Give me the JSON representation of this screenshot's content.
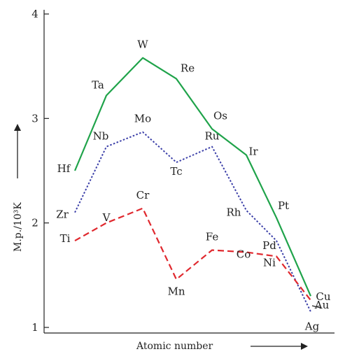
{
  "chart_data": {
    "type": "line",
    "title": "",
    "xlabel": "Atomic number",
    "ylabel": "M.p./10³K",
    "ylim": [
      1,
      4
    ],
    "yticks": [
      1,
      2,
      3,
      4
    ],
    "grid": false,
    "legend": "none",
    "series": [
      {
        "color": "#1fa34a",
        "dash": "solid",
        "points": [
          {
            "label": "Hf",
            "y": 2.5
          },
          {
            "label": "Ta",
            "y": 3.22
          },
          {
            "label": "W",
            "y": 3.58
          },
          {
            "label": "Re",
            "y": 3.38
          },
          {
            "label": "Os",
            "y": 2.9
          },
          {
            "label": "Ir",
            "y": 2.65
          },
          {
            "label": "Pt",
            "y": 2.05
          },
          {
            "label": "Au",
            "y": 1.3
          }
        ]
      },
      {
        "color": "#3b3fa8",
        "dash": "dotted",
        "points": [
          {
            "label": "Zr",
            "y": 2.1
          },
          {
            "label": "Nb",
            "y": 2.73
          },
          {
            "label": "Mo",
            "y": 2.87
          },
          {
            "label": "Tc",
            "y": 2.58
          },
          {
            "label": "Ru",
            "y": 2.73
          },
          {
            "label": "Rh",
            "y": 2.12
          },
          {
            "label": "Pd",
            "y": 1.83
          },
          {
            "label": "Ag",
            "y": 1.15
          }
        ]
      },
      {
        "color": "#e0282e",
        "dash": "dashed",
        "points": [
          {
            "label": "Ti",
            "y": 1.83
          },
          {
            "label": "V",
            "y": 2.0
          },
          {
            "label": "Cr",
            "y": 2.14
          },
          {
            "label": "Mn",
            "y": 1.46
          },
          {
            "label": "Fe",
            "y": 1.74
          },
          {
            "label": "Co",
            "y": 1.72
          },
          {
            "label": "Ni",
            "y": 1.68
          },
          {
            "label": "Cu",
            "y": 1.26
          }
        ]
      }
    ]
  }
}
